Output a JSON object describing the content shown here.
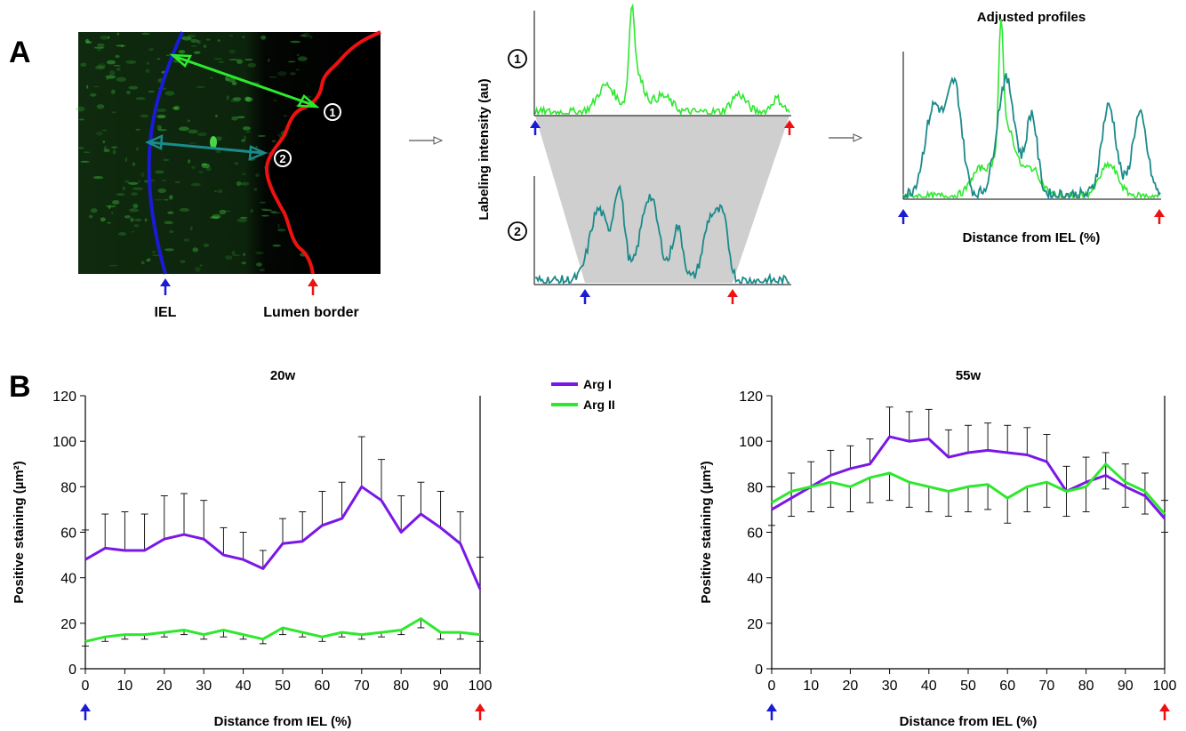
{
  "panel_a": {
    "label": "A",
    "iel_label": "IEL",
    "lumen_label": "Lumen border",
    "marker1": "1",
    "marker2": "2",
    "ylabel": "Labeling intensity (au)",
    "adjusted_title": "Adjusted profiles",
    "adjusted_xlabel": "Distance from IEL (%)"
  },
  "panel_b": {
    "label": "B",
    "legend": [
      "Arg I",
      "Arg II"
    ]
  },
  "colors": {
    "arg1": "#7a17e6",
    "arg2": "#2ee82e",
    "teal": "#1b8a8a",
    "iel": "#1b1bd6",
    "lumen": "#ee1111",
    "arrow_green": "#2ee82e",
    "arrow_teal": "#1b8a8a"
  },
  "chart_data": [
    {
      "type": "line",
      "title": "20w",
      "xlabel": "Distance from IEL (%)",
      "ylabel": "Positive staining (µm²)",
      "xlim": [
        0,
        100
      ],
      "ylim": [
        0,
        120
      ],
      "xticks": [
        0,
        10,
        20,
        30,
        40,
        50,
        60,
        70,
        80,
        90,
        100
      ],
      "yticks": [
        0,
        20,
        40,
        60,
        80,
        100,
        120
      ],
      "x": [
        0,
        5,
        10,
        15,
        20,
        25,
        30,
        35,
        40,
        45,
        50,
        55,
        60,
        65,
        70,
        75,
        80,
        85,
        90,
        95,
        100
      ],
      "series": [
        {
          "name": "Arg I",
          "values": [
            48,
            53,
            52,
            52,
            57,
            59,
            57,
            50,
            48,
            44,
            55,
            56,
            63,
            66,
            80,
            74,
            60,
            68,
            62,
            55,
            35
          ],
          "error": [
            13,
            15,
            17,
            16,
            19,
            18,
            17,
            12,
            12,
            8,
            11,
            13,
            15,
            16,
            22,
            18,
            16,
            14,
            16,
            14,
            14
          ]
        },
        {
          "name": "Arg II",
          "values": [
            12,
            14,
            15,
            15,
            16,
            17,
            15,
            17,
            15,
            13,
            18,
            16,
            14,
            16,
            15,
            16,
            17,
            22,
            16,
            16,
            15
          ],
          "error": [
            2,
            2,
            2,
            2,
            2,
            2,
            2,
            3,
            2,
            2,
            3,
            2,
            2,
            2,
            2,
            2,
            2,
            4,
            3,
            3,
            3
          ]
        }
      ]
    },
    {
      "type": "line",
      "title": "55w",
      "xlabel": "Distance from IEL (%)",
      "ylabel": "Positive staining (µm²)",
      "xlim": [
        0,
        100
      ],
      "ylim": [
        0,
        120
      ],
      "xticks": [
        0,
        10,
        20,
        30,
        40,
        50,
        60,
        70,
        80,
        90,
        100
      ],
      "yticks": [
        0,
        20,
        40,
        60,
        80,
        100,
        120
      ],
      "x": [
        0,
        5,
        10,
        15,
        20,
        25,
        30,
        35,
        40,
        45,
        50,
        55,
        60,
        65,
        70,
        75,
        80,
        85,
        90,
        95,
        100
      ],
      "series": [
        {
          "name": "Arg I",
          "values": [
            70,
            75,
            80,
            85,
            88,
            90,
            102,
            100,
            101,
            93,
            95,
            96,
            95,
            94,
            91,
            78,
            82,
            85,
            80,
            76,
            66
          ],
          "error": [
            10,
            11,
            11,
            11,
            10,
            11,
            13,
            13,
            13,
            12,
            12,
            12,
            12,
            12,
            12,
            11,
            11,
            10,
            10,
            10,
            8
          ]
        },
        {
          "name": "Arg II",
          "values": [
            73,
            78,
            80,
            82,
            80,
            84,
            86,
            82,
            80,
            78,
            80,
            81,
            75,
            80,
            82,
            78,
            80,
            90,
            82,
            78,
            68
          ],
          "error": [
            10,
            11,
            11,
            11,
            11,
            11,
            12,
            11,
            11,
            11,
            11,
            11,
            11,
            11,
            11,
            11,
            11,
            11,
            11,
            10,
            8
          ]
        }
      ]
    }
  ]
}
